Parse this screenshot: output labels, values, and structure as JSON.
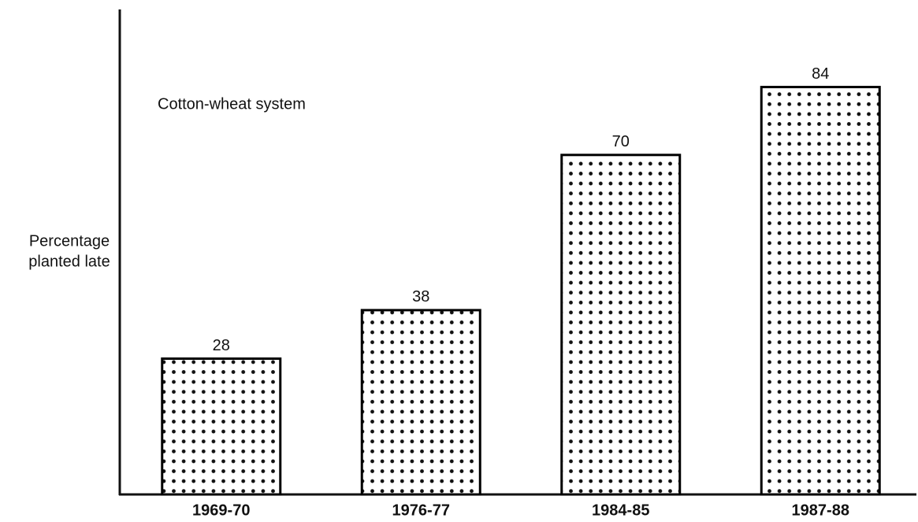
{
  "chart_data": {
    "type": "bar",
    "title": "Cotton-wheat system",
    "ylabel": [
      "Percentage",
      "planted late"
    ],
    "categories": [
      "1969-70",
      "1976-77",
      "1984-85",
      "1987-88"
    ],
    "values": [
      28,
      38,
      70,
      84
    ],
    "color": "#000000",
    "ylim": [
      0,
      100
    ]
  }
}
